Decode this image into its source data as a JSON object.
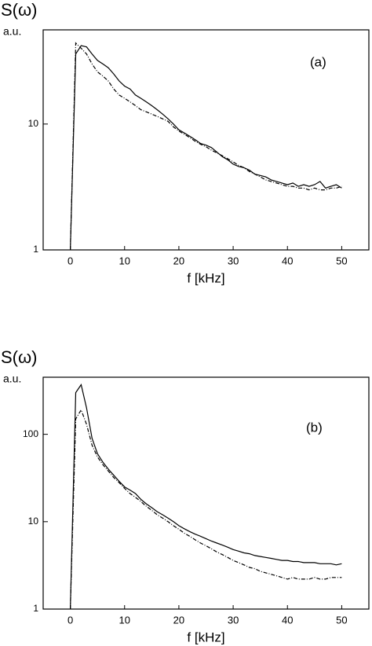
{
  "chart_data": [
    {
      "type": "line",
      "ylabel": "S(ω)",
      "yunit": "a.u.",
      "xlabel": "f [kHz]",
      "annotation": "(a)",
      "log_y": true,
      "xlim": [
        -5,
        55
      ],
      "xticks": [
        0,
        10,
        20,
        30,
        40,
        50
      ],
      "ylim": [
        1,
        56
      ],
      "yticks": [
        1,
        10
      ],
      "x": [
        0,
        1,
        2,
        3,
        4,
        5,
        6,
        7,
        8,
        9,
        10,
        11,
        12,
        13,
        14,
        15,
        16,
        17,
        18,
        19,
        20,
        21,
        22,
        23,
        24,
        25,
        26,
        27,
        28,
        29,
        30,
        31,
        32,
        33,
        34,
        35,
        36,
        37,
        38,
        39,
        40,
        41,
        42,
        43,
        44,
        45,
        46,
        47,
        48,
        49,
        50
      ],
      "series": [
        {
          "color": "#000000",
          "dash": "none",
          "values": [
            1,
            36,
            42,
            41,
            36,
            32,
            30,
            28,
            25,
            22,
            20,
            19,
            17,
            16,
            15,
            14,
            13,
            12,
            11,
            10,
            9,
            8.5,
            8,
            7.5,
            7,
            6.8,
            6.5,
            6,
            5.5,
            5.2,
            4.8,
            4.6,
            4.5,
            4.3,
            4.0,
            3.9,
            3.8,
            3.6,
            3.5,
            3.4,
            3.3,
            3.4,
            3.2,
            3.3,
            3.2,
            3.3,
            3.5,
            3.1,
            3.2,
            3.3,
            3.1
          ]
        },
        {
          "color": "#000000",
          "dash": "5,2,1,2",
          "values": [
            1,
            44,
            40,
            36,
            30,
            26,
            24,
            22,
            19,
            17,
            16,
            15,
            14,
            13,
            12.5,
            12,
            11.5,
            11,
            10.5,
            9.5,
            8.8,
            8.3,
            7.8,
            7.3,
            6.9,
            6.6,
            6.2,
            5.9,
            5.6,
            5.3,
            5.0,
            4.7,
            4.5,
            4.2,
            4.0,
            3.8,
            3.6,
            3.5,
            3.4,
            3.3,
            3.2,
            3.2,
            3.1,
            3.1,
            3.0,
            3.1,
            3.0,
            3.0,
            3.1,
            3.1,
            3.2
          ]
        }
      ]
    },
    {
      "type": "line",
      "ylabel": "S(ω)",
      "yunit": "a.u.",
      "xlabel": "f [kHz]",
      "annotation": "(b)",
      "log_y": true,
      "xlim": [
        -5,
        55
      ],
      "xticks": [
        0,
        10,
        20,
        30,
        40,
        50
      ],
      "ylim": [
        1,
        450
      ],
      "yticks": [
        1,
        10,
        100
      ],
      "x": [
        0,
        1,
        2,
        3,
        4,
        5,
        6,
        7,
        8,
        9,
        10,
        11,
        12,
        13,
        14,
        15,
        16,
        17,
        18,
        19,
        20,
        21,
        22,
        23,
        24,
        25,
        26,
        27,
        28,
        29,
        30,
        31,
        32,
        33,
        34,
        35,
        36,
        37,
        38,
        39,
        40,
        41,
        42,
        43,
        44,
        45,
        46,
        47,
        48,
        49,
        50
      ],
      "series": [
        {
          "color": "#000000",
          "dash": "none",
          "values": [
            1,
            300,
            370,
            200,
            90,
            60,
            48,
            40,
            34,
            29,
            25,
            23,
            21,
            18,
            16,
            14.5,
            13,
            12,
            11,
            10,
            9,
            8.3,
            7.7,
            7.2,
            6.8,
            6.4,
            6,
            5.7,
            5.4,
            5.1,
            4.8,
            4.6,
            4.4,
            4.3,
            4.1,
            4.0,
            3.9,
            3.8,
            3.7,
            3.6,
            3.6,
            3.5,
            3.5,
            3.4,
            3.4,
            3.4,
            3.3,
            3.3,
            3.3,
            3.2,
            3.3
          ]
        },
        {
          "color": "#000000",
          "dash": "5,2,1,2",
          "values": [
            1,
            150,
            190,
            130,
            75,
            55,
            45,
            38,
            32,
            28,
            24,
            21,
            19,
            17,
            15,
            13.5,
            12,
            11,
            10,
            9,
            8.2,
            7.4,
            6.8,
            6.2,
            5.7,
            5.3,
            4.9,
            4.5,
            4.2,
            3.9,
            3.6,
            3.4,
            3.2,
            3.0,
            2.9,
            2.7,
            2.6,
            2.5,
            2.4,
            2.3,
            2.2,
            2.3,
            2.2,
            2.2,
            2.2,
            2.3,
            2.2,
            2.2,
            2.3,
            2.3,
            2.3
          ]
        }
      ]
    }
  ]
}
